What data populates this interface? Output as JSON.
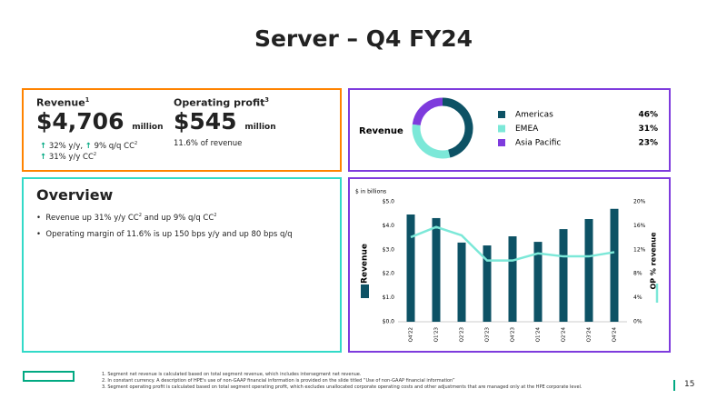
{
  "header": {
    "title": "Server – Q4 FY24"
  },
  "kpis": {
    "revenue": {
      "label": "Revenue",
      "label_note": "1",
      "value": "$4,706",
      "unit": "million",
      "growth": [
        {
          "text": "32% y/y,"
        },
        {
          "text": "9% q/q CC",
          "note": "2"
        },
        {
          "text": "31% y/y CC",
          "note": "2"
        }
      ]
    },
    "operating_profit": {
      "label": "Operating profit",
      "label_note": "3",
      "value": "$545",
      "unit": "million",
      "detail": "11.6% of revenue"
    }
  },
  "overview": {
    "title": "Overview",
    "bullets": [
      [
        {
          "text": "Revenue up 31% y/y CC",
          "note": "2"
        },
        {
          "text": " and up 9% q/q CC",
          "note": "2"
        }
      ],
      [
        {
          "text": "Operating margin of 11.6% is up 150 bps y/y and up 80 bps q/q"
        }
      ]
    ]
  },
  "chart_data": [
    {
      "type": "pie",
      "donut": true,
      "title": "Revenue",
      "categories": [
        "Americas",
        "EMEA",
        "Asia Pacific"
      ],
      "values": [
        46,
        31,
        23
      ],
      "value_labels": [
        "46%",
        "31%",
        "23%"
      ],
      "colors": [
        "#0d5265",
        "#7ce8d8",
        "#7e3bdd"
      ]
    },
    {
      "type": "bar",
      "subtitle": "$ in billions",
      "categories": [
        "Q4'22",
        "Q1'23",
        "Q2'23",
        "Q3'23",
        "Q4'23",
        "Q1'24",
        "Q2'24",
        "Q3'24",
        "Q4'24"
      ],
      "series": [
        {
          "name": "Revenue",
          "type": "bar",
          "color": "#0d5265",
          "values": [
            4.47,
            4.32,
            3.3,
            3.18,
            3.56,
            3.33,
            3.86,
            4.28,
            4.706
          ]
        },
        {
          "name": "OP % revenue",
          "type": "line",
          "axis": "y2",
          "color": "#7ce8d8",
          "values": [
            14.1,
            15.8,
            14.4,
            10.2,
            10.2,
            11.4,
            10.9,
            10.9,
            11.6
          ]
        }
      ],
      "ylim": [
        0,
        5
      ],
      "yticks": [
        {
          "value": 0,
          "label": "$0.0"
        },
        {
          "value": 1,
          "label": "$1.0"
        },
        {
          "value": 2,
          "label": "$2.0"
        },
        {
          "value": 3,
          "label": "$3.0"
        },
        {
          "value": 4,
          "label": "$4.0"
        },
        {
          "value": 5,
          "label": "$5.0"
        }
      ],
      "y2lim": [
        0,
        20
      ],
      "y2ticks": [
        {
          "value": 0,
          "label": "0%"
        },
        {
          "value": 4,
          "label": "4%"
        },
        {
          "value": 8,
          "label": "8%"
        },
        {
          "value": 12,
          "label": "12%"
        },
        {
          "value": 16,
          "label": "16%"
        },
        {
          "value": 20,
          "label": "20%"
        }
      ]
    }
  ],
  "footnotes": [
    {
      "number": "1.",
      "text": "Segment net revenue is calculated based on total segment revenue, which includes intersegment net revenue."
    },
    {
      "number": "2.",
      "text": "In constant currency. A description of HPE's use of non-GAAP financial information is provided on the slide titled “Use of non-GAAP financial information”"
    },
    {
      "number": "3.",
      "text": "Segment operating profit is calculated based on total segment operating profit, which excludes unallocated corporate operating costs and other adjustments that are managed only at the HPE corporate level."
    }
  ],
  "page_number": "15"
}
